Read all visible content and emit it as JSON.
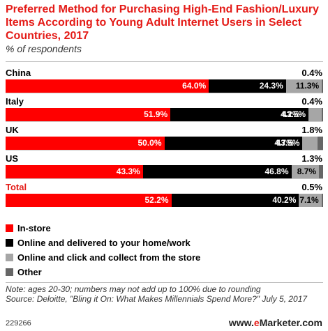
{
  "chart_data": {
    "type": "bar",
    "title": "Preferred Method for Purchasing High-End Fashion/Luxury Items According to Young Adult Internet Users in Select Countries, 2017",
    "subtitle": "% of respondents",
    "stacked": true,
    "orientation": "horizontal",
    "categories": [
      "China",
      "Italy",
      "UK",
      "US",
      "Total"
    ],
    "series": [
      {
        "name": "In-store",
        "color": "#ff0000",
        "values": [
          64.0,
          51.9,
          50.0,
          43.3,
          52.2
        ],
        "labels": [
          "64.0%",
          "51.9%",
          "50.0%",
          "43.3%",
          "52.2%"
        ]
      },
      {
        "name": "Online and delivered to your home/work",
        "color": "#000000",
        "values": [
          24.3,
          43.5,
          43.5,
          46.8,
          40.2
        ],
        "labels": [
          "24.3%",
          "43.5%",
          "43.5%",
          "46.8%",
          "40.2%"
        ]
      },
      {
        "name": "Online and click and collect from the store",
        "color": "#a6a6a6",
        "values": [
          11.3,
          4.2,
          4.7,
          8.7,
          7.1
        ],
        "labels": [
          "11.3%",
          "4.2%",
          "4.7%",
          "8.7%",
          "7.1%"
        ]
      },
      {
        "name": "Other",
        "color": "#666666",
        "values": [
          0.4,
          0.4,
          1.8,
          1.3,
          0.5
        ],
        "labels": [
          "0.4%",
          "0.4%",
          "1.8%",
          "1.3%",
          "0.5%"
        ]
      }
    ],
    "category_colors": [
      "#000000",
      "#000000",
      "#000000",
      "#000000",
      "#e41b17"
    ],
    "note": "Note: ages 20-30; numbers may not add up to 100% due to rounding",
    "source": "Source: Deloitte, \"Bling it On: What Makes Millennials Spend More?\" July 5, 2017",
    "chart_id": "229266",
    "brand": "eMarketer.com"
  }
}
